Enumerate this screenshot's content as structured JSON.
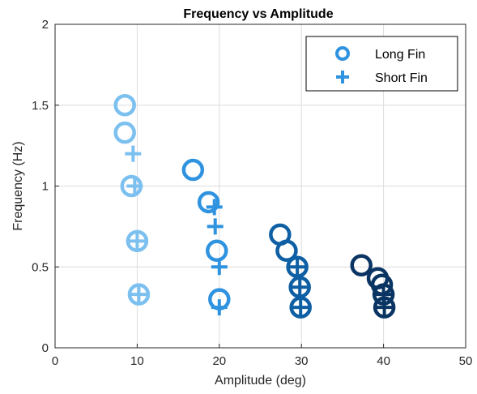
{
  "chart_data": {
    "type": "scatter",
    "title": "Frequency vs Amplitude",
    "xlabel": "Amplitude (deg)",
    "ylabel": "Frequency (Hz)",
    "xlim": [
      0,
      50
    ],
    "ylim": [
      0,
      2
    ],
    "xticks": [
      0,
      10,
      20,
      30,
      40,
      50
    ],
    "yticks": [
      0,
      0.5,
      1,
      1.5,
      2
    ],
    "xtick_labels": [
      "0",
      "10",
      "20",
      "30",
      "40",
      "50"
    ],
    "ytick_labels": [
      "0",
      "0.5",
      "1",
      "1.5",
      "2"
    ],
    "grid": true,
    "legend_position": "top-right",
    "series": [
      {
        "name": "Long Fin",
        "marker": "circle",
        "groups": [
          {
            "color": "#7cc0f0",
            "points": [
              [
                8.5,
                1.5
              ],
              [
                8.5,
                1.33
              ],
              [
                9.3,
                1.0
              ],
              [
                10.0,
                0.66
              ],
              [
                10.2,
                0.33
              ]
            ]
          },
          {
            "color": "#2f93e0",
            "points": [
              [
                16.8,
                1.1
              ],
              [
                18.7,
                0.9
              ],
              [
                19.7,
                0.6
              ],
              [
                20.0,
                0.3
              ]
            ]
          },
          {
            "color": "#0e5fa4",
            "points": [
              [
                27.4,
                0.7
              ],
              [
                28.2,
                0.6
              ],
              [
                29.5,
                0.5
              ],
              [
                29.8,
                0.375
              ],
              [
                29.9,
                0.25
              ]
            ]
          },
          {
            "color": "#0a3563",
            "points": [
              [
                37.3,
                0.51
              ],
              [
                39.3,
                0.43
              ],
              [
                39.8,
                0.39
              ],
              [
                40.0,
                0.33
              ],
              [
                40.1,
                0.25
              ]
            ]
          }
        ]
      },
      {
        "name": "Short Fin",
        "marker": "plus",
        "groups": [
          {
            "color": "#7cc0f0",
            "points": [
              [
                9.5,
                1.2
              ],
              [
                9.7,
                1.0
              ],
              [
                10.0,
                0.66
              ],
              [
                10.2,
                0.33
              ]
            ]
          },
          {
            "color": "#2f93e0",
            "points": [
              [
                19.4,
                0.87
              ],
              [
                19.5,
                0.75
              ],
              [
                20.0,
                0.5
              ],
              [
                20.0,
                0.25
              ]
            ]
          },
          {
            "color": "#0e5fa4",
            "points": [
              [
                29.5,
                0.5
              ],
              [
                29.8,
                0.375
              ],
              [
                29.9,
                0.25
              ]
            ]
          },
          {
            "color": "#0a3563",
            "points": [
              [
                40.0,
                0.33
              ],
              [
                40.1,
                0.25
              ]
            ]
          }
        ]
      }
    ],
    "legend": {
      "entries": [
        {
          "label": "Long Fin",
          "marker": "circle",
          "color": "#2f93e0"
        },
        {
          "label": "Short Fin",
          "marker": "plus",
          "color": "#2f93e0"
        }
      ]
    }
  }
}
